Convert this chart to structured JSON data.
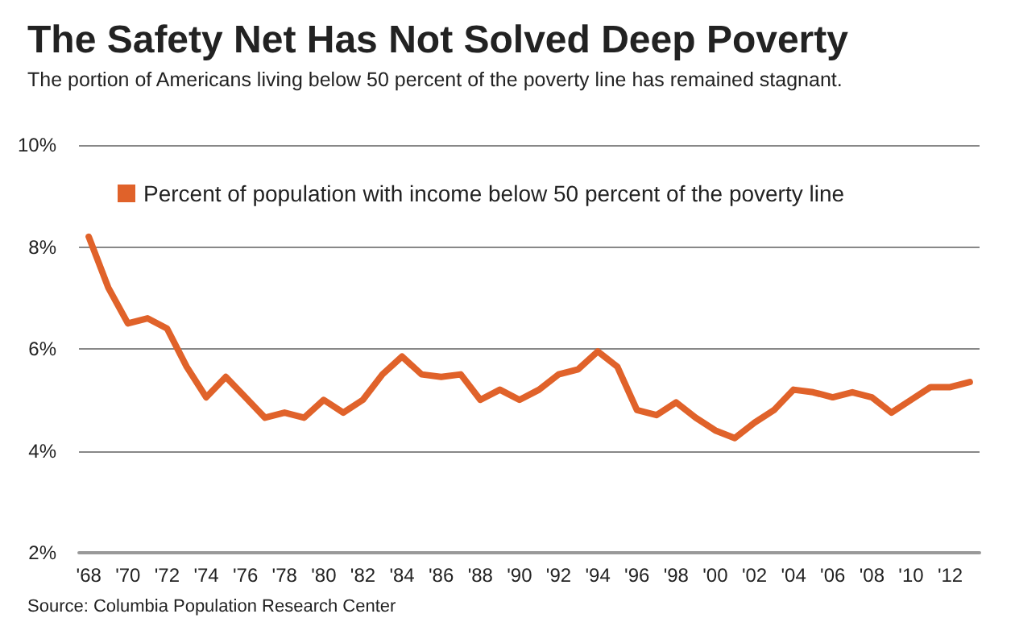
{
  "chart_data": {
    "type": "line",
    "title": "The Safety Net Has Not Solved Deep Poverty",
    "subtitle": "The portion of Americans living below 50 percent of the poverty line has remained stagnant.",
    "x": [
      1968,
      1969,
      1970,
      1971,
      1972,
      1973,
      1974,
      1975,
      1976,
      1977,
      1978,
      1979,
      1980,
      1981,
      1982,
      1983,
      1984,
      1985,
      1986,
      1987,
      1988,
      1989,
      1990,
      1991,
      1992,
      1993,
      1994,
      1995,
      1996,
      1997,
      1998,
      1999,
      2000,
      2001,
      2002,
      2003,
      2004,
      2005,
      2006,
      2007,
      2008,
      2009,
      2010,
      2011,
      2012,
      2013
    ],
    "series": [
      {
        "name": "Percent of population with income below 50 percent of the poverty line",
        "color": "#e0622a",
        "values": [
          8.2,
          7.2,
          6.5,
          6.6,
          6.4,
          5.65,
          5.05,
          5.45,
          5.05,
          4.65,
          4.75,
          4.65,
          5.0,
          4.75,
          5.0,
          5.5,
          5.85,
          5.5,
          5.45,
          5.5,
          5.0,
          5.2,
          5.0,
          5.2,
          5.5,
          5.6,
          5.95,
          5.65,
          4.8,
          4.7,
          4.95,
          4.65,
          4.4,
          4.25,
          4.55,
          4.8,
          5.2,
          5.15,
          5.05,
          5.15,
          5.05,
          4.75,
          5.0,
          5.25,
          5.25,
          5.35
        ]
      }
    ],
    "xlim": [
      1967.5,
      2013.5
    ],
    "xticks": [
      {
        "value": 1968,
        "label": "'68"
      },
      {
        "value": 1970,
        "label": "'70"
      },
      {
        "value": 1972,
        "label": "'72"
      },
      {
        "value": 1974,
        "label": "'74"
      },
      {
        "value": 1976,
        "label": "'76"
      },
      {
        "value": 1978,
        "label": "'78"
      },
      {
        "value": 1980,
        "label": "'80"
      },
      {
        "value": 1982,
        "label": "'82"
      },
      {
        "value": 1984,
        "label": "'84"
      },
      {
        "value": 1986,
        "label": "'86"
      },
      {
        "value": 1988,
        "label": "'88"
      },
      {
        "value": 1990,
        "label": "'90"
      },
      {
        "value": 1992,
        "label": "'92"
      },
      {
        "value": 1994,
        "label": "'94"
      },
      {
        "value": 1996,
        "label": "'96"
      },
      {
        "value": 1998,
        "label": "'98"
      },
      {
        "value": 2000,
        "label": "'00"
      },
      {
        "value": 2002,
        "label": "'02"
      },
      {
        "value": 2004,
        "label": "'04"
      },
      {
        "value": 2006,
        "label": "'06"
      },
      {
        "value": 2008,
        "label": "'08"
      },
      {
        "value": 2010,
        "label": "'10"
      },
      {
        "value": 2012,
        "label": "'12"
      }
    ],
    "ylim": [
      2,
      10
    ],
    "yticks": [
      {
        "value": 2,
        "label": "2%"
      },
      {
        "value": 4,
        "label": "4%"
      },
      {
        "value": 6,
        "label": "6%"
      },
      {
        "value": 8,
        "label": "8%"
      },
      {
        "value": 10,
        "label": "10%"
      }
    ],
    "grid": "y",
    "legend": "top left",
    "marker": "none",
    "line_style": "solid",
    "annotations": [
      "Source: Columbia Population Research Center"
    ]
  }
}
